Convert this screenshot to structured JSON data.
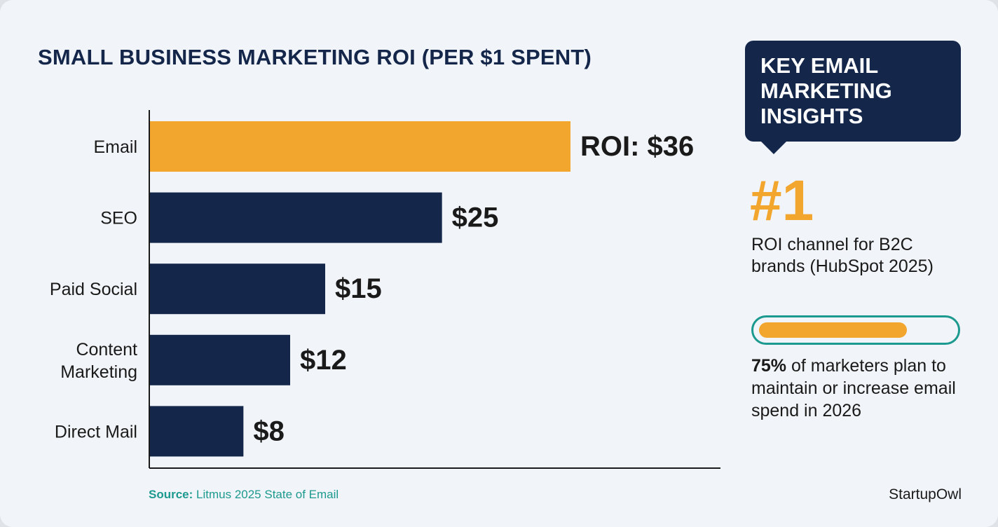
{
  "chart_data": {
    "type": "bar",
    "orientation": "horizontal",
    "title": "SMALL BUSINESS MARKETING ROI (PER $1 SPENT)",
    "categories": [
      "Email",
      "SEO",
      "Paid Social",
      "Content Marketing",
      "Direct Mail"
    ],
    "category_lines": [
      [
        "Email"
      ],
      [
        "SEO"
      ],
      [
        "Paid Social"
      ],
      [
        "Content",
        "Marketing"
      ],
      [
        "Direct Mail"
      ]
    ],
    "values": [
      36,
      25,
      15,
      12,
      8
    ],
    "value_labels": [
      "ROI: $36",
      "$25",
      "$15",
      "$12",
      "$8"
    ],
    "highlight": "Email",
    "xlim": [
      0,
      48
    ],
    "grid": false,
    "colors": {
      "highlight": "#f3a62d",
      "bar": "#14264a"
    }
  },
  "source": {
    "label": "Source:",
    "text": " Litmus 2025 State of Email"
  },
  "brand": "StartupOwl",
  "insights": {
    "title": "KEY EMAIL\nMARKETING\nINSIGHTS",
    "rank": "#1",
    "rank_text": "ROI channel for B2C brands (HubSpot 2025)",
    "progress": 0.75,
    "stat_pct": "75%",
    "stat_text": " of marketers plan to maintain or increase email spend in 2026"
  },
  "colors": {
    "navy": "#14264a",
    "orange": "#f3a62d",
    "teal": "#1d9a8f"
  }
}
